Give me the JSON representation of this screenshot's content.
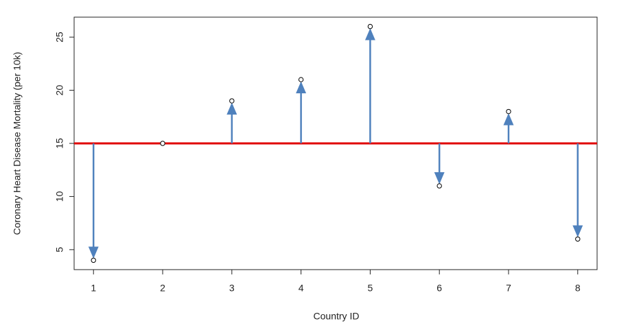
{
  "chart_data": {
    "type": "scatter",
    "x_label": "Country ID",
    "y_label": "Coronary Heart Disease Mortality (per 10k)",
    "x": [
      1,
      2,
      3,
      4,
      5,
      6,
      7,
      8
    ],
    "series": [
      {
        "values": [
          4,
          15,
          19,
          21,
          26,
          11,
          18,
          6
        ],
        "color": "#000000",
        "arrow_color": "#4f81bd"
      }
    ],
    "reference_line": {
      "value": 15,
      "color": "#e00000"
    },
    "xlim": [
      0.72,
      8.28
    ],
    "xticks": [
      1,
      2,
      3,
      4,
      5,
      6,
      7,
      8
    ],
    "ylim": [
      3.12,
      26.88
    ],
    "yticks": [
      5,
      10,
      15,
      20,
      25
    ]
  }
}
